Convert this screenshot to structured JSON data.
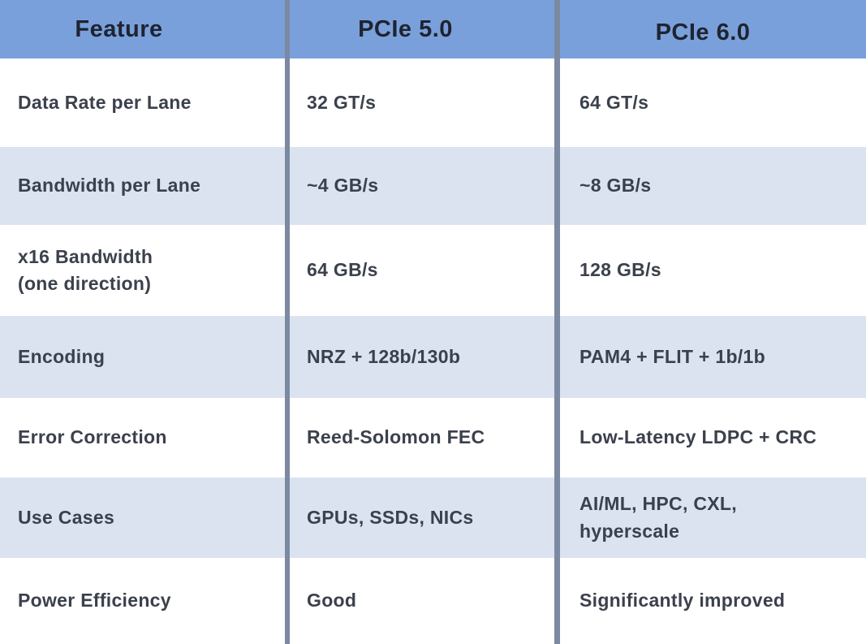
{
  "chart_data": {
    "type": "table",
    "columns": [
      "Feature",
      "PCIe 5.0",
      "PCIe 6.0"
    ],
    "rows": [
      [
        "Data Rate per Lane",
        "32 GT/s",
        "64 GT/s"
      ],
      [
        "Bandwidth per Lane",
        "~4 GB/s",
        "~8 GB/s"
      ],
      [
        "x16 Bandwidth (one direction)",
        "64 GB/s",
        "128 GB/s"
      ],
      [
        "Encoding",
        "NRZ + 128b/130b",
        "PAM4 + FLIT + 1b/1b"
      ],
      [
        "Error Correction",
        "Reed-Solomon FEC",
        "Low-Latency LDPC + CRC"
      ],
      [
        "Use Cases",
        "GPUs, SSDs, NICs",
        "AI/ML, HPC, CXL, hyperscale"
      ],
      [
        "Power Efficiency",
        "Good",
        "Significantly improved"
      ]
    ]
  },
  "table": {
    "headers": {
      "feature": "Feature",
      "pcie5": "PCIe 5.0",
      "pcie6": "PCIe 6.0"
    },
    "rows": [
      {
        "feature": "Data Rate per Lane",
        "pcie5": "32 GT/s",
        "pcie6": "64 GT/s"
      },
      {
        "feature": "Bandwidth per Lane",
        "pcie5": "~4 GB/s",
        "pcie6": "~8 GB/s"
      },
      {
        "feature": "x16 Bandwidth\n(one direction)",
        "pcie5": "64 GB/s",
        "pcie6": "128 GB/s"
      },
      {
        "feature": "Encoding",
        "pcie5": "NRZ + 128b/130b",
        "pcie6": "PAM4 + FLIT + 1b/1b"
      },
      {
        "feature": "Error Correction",
        "pcie5": "Reed-Solomon FEC",
        "pcie6": "Low-Latency LDPC + CRC"
      },
      {
        "feature": "Use Cases",
        "pcie5": "GPUs, SSDs, NICs",
        "pcie6": "AI/ML, HPC, CXL,\nhyperscale"
      },
      {
        "feature": "Power Efficiency",
        "pcie5": "Good",
        "pcie6": "Significantly improved"
      }
    ]
  },
  "colors": {
    "header_bg": "#7AA0DB",
    "row_bg": "#FFFFFF",
    "row_alt_bg": "#DBE3F1",
    "column_divider": "#7B89A1",
    "header_text": "#1E2430",
    "cell_text": "#3B414C"
  }
}
